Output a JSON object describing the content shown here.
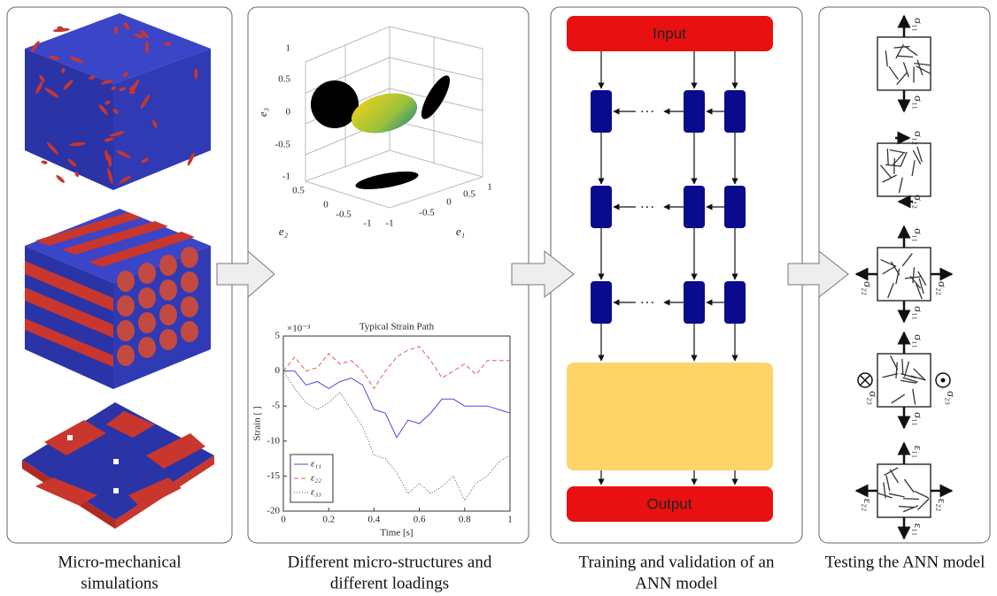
{
  "captions": [
    "Micro-mechanical",
    "simulations",
    "Different micro-structures and",
    "different loadings",
    "Training and validation of an",
    "ANN model",
    "Testing the ANN model"
  ],
  "orientation_plot": {
    "z_label": "e₃",
    "x_label": "e₁",
    "y_label": "e₂",
    "z_ticks": [
      1,
      0.5,
      0,
      -0.5,
      -1
    ],
    "y_ticks": [
      0.5,
      0,
      -0.5,
      -1
    ],
    "x_ticks": [
      -1,
      -0.5,
      0,
      0.5,
      1
    ]
  },
  "strain_plot": {
    "type": "line",
    "title": "Typical Strain Path",
    "x_label": "Time [s]",
    "y_label": "Strain [ ]",
    "multiplier": "×10⁻³",
    "x": [
      0,
      0.05,
      0.1,
      0.15,
      0.2,
      0.25,
      0.3,
      0.35,
      0.4,
      0.45,
      0.5,
      0.55,
      0.6,
      0.65,
      0.7,
      0.75,
      0.8,
      0.85,
      0.9,
      0.95,
      1
    ],
    "series": [
      {
        "name": "ε₁₁",
        "color": "#4a4ae0",
        "dash": "none",
        "values": [
          0,
          0,
          -2,
          -1.5,
          -2.5,
          -1.5,
          -1,
          -2,
          -5.5,
          -6,
          -9.5,
          -7,
          -7.5,
          -6,
          -4,
          -4,
          -5,
          -5,
          -5,
          -5.5,
          -6
        ]
      },
      {
        "name": "ε₂₂",
        "color": "#e06060",
        "dash": "5,3",
        "values": [
          0,
          2,
          0,
          0.5,
          2.5,
          1,
          1.5,
          0,
          -2.5,
          0,
          2,
          3,
          3.5,
          1.5,
          -1,
          0,
          1,
          -0.5,
          1.5,
          1.5,
          1.5
        ]
      },
      {
        "name": "ε₃₃",
        "color": "#555555",
        "dash": "1,2",
        "values": [
          0,
          -2.5,
          -4.5,
          -5.5,
          -4.5,
          -3,
          -5.5,
          -8,
          -12,
          -12.5,
          -14.5,
          -17.5,
          -16,
          -17.5,
          -16.5,
          -15,
          -18.5,
          -16,
          -15,
          -13,
          -12
        ]
      }
    ],
    "xlim": [
      0,
      1
    ],
    "ylim": [
      -20,
      5
    ],
    "xticks": [
      0,
      0.2,
      0.4,
      0.6,
      0.8,
      1
    ],
    "yticks": [
      -20,
      -15,
      -10,
      -5,
      0,
      5
    ]
  },
  "ann": {
    "input": "Input",
    "output": "Output",
    "ellipsis": "···"
  },
  "testing": {
    "blocks": [
      {
        "labels": [
          "σ₁₁",
          "σ₁₁"
        ]
      },
      {
        "labels": [
          "σ₁₂",
          "σ₁₂"
        ]
      },
      {
        "labels": [
          "σ₁₁",
          "σ₂₂",
          "σ₂₂",
          "σ₁₁"
        ]
      },
      {
        "labels": [
          "σ₁₁",
          "σ₂₃",
          "σ₂₃",
          "σ₁₁"
        ]
      },
      {
        "labels": [
          "ε₁₁",
          "ε₂₂",
          "ε₂₂",
          "ε₁₁"
        ]
      }
    ]
  }
}
